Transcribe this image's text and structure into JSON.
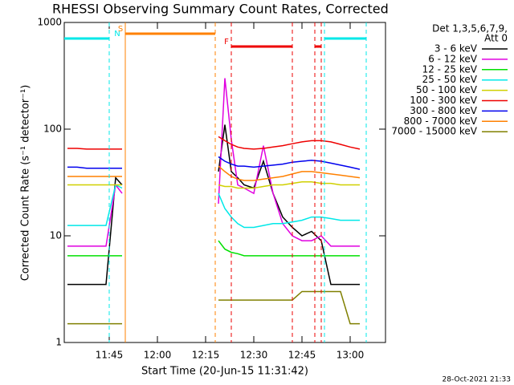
{
  "chart_data": {
    "type": "line",
    "title": "RHESSI Observing Summary Count Rates, Corrected",
    "x_label": "Start Time (20-Jun-15 11:31:42)",
    "y_label": "Corrected Count Rate (s⁻¹ detector⁻¹)",
    "legend_header": [
      "Det 1,3,5,6,7,9,",
      "Att 0"
    ],
    "footer": "28-Oct-2021 21:33",
    "log_y": true,
    "xlim": [
      "11:31",
      "13:11"
    ],
    "xticks": [
      "11:45",
      "12:00",
      "12:15",
      "12:30",
      "12:45",
      "13:00"
    ],
    "ylim": [
      1,
      1000
    ],
    "yticks": [
      1,
      10,
      100,
      1000
    ],
    "x": [
      "11:32",
      "11:35",
      "11:38",
      "11:41",
      "11:44",
      "11:47",
      "11:49",
      "12:00",
      "12:19",
      "12:21",
      "12:23",
      "12:25",
      "12:27",
      "12:30",
      "12:33",
      "12:36",
      "12:39",
      "12:42",
      "12:45",
      "12:48",
      "12:51",
      "12:54",
      "12:57",
      "13:00",
      "13:03"
    ],
    "series": [
      {
        "name": "3 - 6 keV",
        "color": "#000000",
        "values": [
          3.5,
          3.5,
          3.5,
          3.5,
          3.5,
          35,
          30,
          null,
          40,
          110,
          40,
          35,
          30,
          28,
          50,
          25,
          15,
          12,
          10,
          11,
          9,
          3.5,
          3.5,
          3.5,
          3.5
        ]
      },
      {
        "name": "6 - 12 keV",
        "color": "#e000e0",
        "values": [
          8,
          8,
          8,
          8,
          8,
          30,
          25,
          null,
          20,
          300,
          80,
          30,
          28,
          25,
          70,
          25,
          13,
          10,
          9,
          9,
          10,
          8,
          8,
          8,
          8
        ]
      },
      {
        "name": "12 - 25 keV",
        "color": "#00e000",
        "values": [
          6.5,
          6.5,
          6.5,
          6.5,
          6.5,
          6.5,
          6.5,
          null,
          9,
          7.5,
          7,
          6.8,
          6.5,
          6.5,
          6.5,
          6.5,
          6.5,
          6.5,
          6.5,
          6.5,
          6.5,
          6.5,
          6.5,
          6.5,
          6.5
        ]
      },
      {
        "name": "25 - 50 keV",
        "color": "#00e8e8",
        "values": [
          12.5,
          12.5,
          12.5,
          12.5,
          12.5,
          30,
          28,
          null,
          25,
          18,
          15,
          13,
          12,
          12,
          12.5,
          13,
          13,
          13.5,
          14,
          15,
          15,
          14.5,
          14,
          14,
          14
        ]
      },
      {
        "name": "50 - 100 keV",
        "color": "#d0d000",
        "values": [
          30,
          30,
          30,
          30,
          30,
          30,
          30,
          null,
          30,
          29,
          29,
          28,
          28,
          28,
          29,
          30,
          30,
          31,
          32,
          32,
          31,
          31,
          30,
          30,
          30
        ]
      },
      {
        "name": "100 - 300 keV",
        "color": "#ee0000",
        "values": [
          66,
          66,
          65,
          65,
          65,
          65,
          65,
          null,
          85,
          78,
          72,
          68,
          66,
          65,
          66,
          68,
          70,
          73,
          76,
          78,
          78,
          76,
          72,
          68,
          65
        ]
      },
      {
        "name": "300 - 800 keV",
        "color": "#0000ee",
        "values": [
          44,
          44,
          43,
          43,
          43,
          43,
          43,
          null,
          55,
          50,
          47,
          45,
          45,
          44,
          45,
          46,
          47,
          49,
          50,
          51,
          50,
          48,
          46,
          44,
          42
        ]
      },
      {
        "name": "800 - 7000 keV",
        "color": "#ff8000",
        "values": [
          36,
          36,
          36,
          36,
          36,
          36,
          36,
          null,
          45,
          40,
          36,
          34,
          33,
          33,
          34,
          35,
          36,
          38,
          40,
          40,
          39,
          38,
          37,
          36,
          35
        ]
      },
      {
        "name": "7000 - 15000 keV",
        "color": "#808000",
        "values": [
          1.5,
          1.5,
          1.5,
          1.5,
          1.5,
          1.5,
          1.5,
          null,
          2.5,
          2.5,
          2.5,
          2.5,
          2.5,
          2.5,
          2.5,
          2.5,
          2.5,
          2.5,
          3,
          3,
          3,
          3,
          3,
          1.5,
          1.5
        ]
      }
    ],
    "flags": [
      {
        "label": "N",
        "color": "#00e8e8",
        "intervals": [
          [
            "11:31",
            "11:45"
          ],
          [
            "12:52",
            "13:05"
          ]
        ]
      },
      {
        "label": "S",
        "color": "#ff8000",
        "intervals": [
          [
            "11:50",
            "12:18"
          ]
        ]
      },
      {
        "label": "F",
        "color": "#ee0000",
        "intervals": [
          [
            "12:23",
            "12:42"
          ],
          [
            "12:49",
            "12:51"
          ]
        ]
      }
    ]
  }
}
